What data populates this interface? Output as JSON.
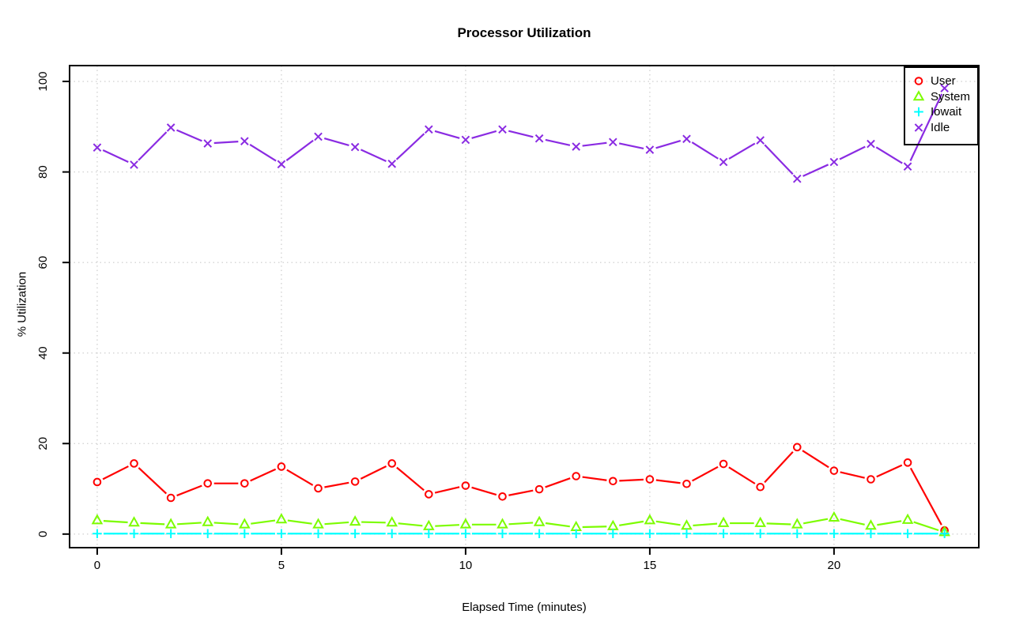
{
  "chart_data": {
    "type": "line",
    "title": "Processor Utilization",
    "xlabel": "Elapsed Time (minutes)",
    "ylabel": "% Utilization",
    "x": [
      0,
      1,
      2,
      3,
      4,
      5,
      6,
      7,
      8,
      9,
      10,
      11,
      12,
      13,
      14,
      15,
      16,
      17,
      18,
      19,
      20,
      21,
      22,
      23
    ],
    "xticks": [
      0,
      5,
      10,
      15,
      20
    ],
    "yticks": [
      0,
      20,
      40,
      60,
      80,
      100
    ],
    "xlim": [
      -0.75,
      23.93
    ],
    "ylim": [
      -3,
      103.5
    ],
    "grid": "dotted",
    "grid_color": "#d3d3d3",
    "axis_color": "#000000",
    "legend_position": "top-right",
    "marker_style": "open markers with gapped connecting lines (R type='b')",
    "series": [
      {
        "name": "User",
        "marker": "circle",
        "color": "#ff0000",
        "values": [
          11.5,
          15.6,
          8.0,
          11.2,
          11.2,
          14.9,
          10.1,
          11.6,
          15.6,
          8.8,
          10.7,
          8.3,
          9.9,
          12.8,
          11.7,
          12.1,
          11.1,
          15.5,
          10.4,
          19.2,
          14.0,
          12.1,
          15.8,
          0.8
        ]
      },
      {
        "name": "System",
        "marker": "triangle",
        "color": "#7cfc00",
        "values": [
          3.0,
          2.5,
          2.1,
          2.6,
          2.1,
          3.2,
          2.1,
          2.7,
          2.5,
          1.7,
          2.1,
          2.1,
          2.6,
          1.5,
          1.7,
          3.0,
          1.8,
          2.4,
          2.4,
          2.1,
          3.6,
          1.8,
          3.1,
          0.4
        ]
      },
      {
        "name": "Iowait",
        "marker": "plus",
        "color": "#00ffff",
        "values": [
          0.1,
          0.1,
          0.1,
          0.1,
          0.1,
          0.1,
          0.1,
          0.1,
          0.1,
          0.1,
          0.1,
          0.1,
          0.1,
          0.1,
          0.1,
          0.1,
          0.1,
          0.1,
          0.1,
          0.1,
          0.1,
          0.1,
          0.1,
          0.1
        ]
      },
      {
        "name": "Idle",
        "marker": "x",
        "color": "#8a2be2",
        "values": [
          85.4,
          81.6,
          89.8,
          86.3,
          86.8,
          81.7,
          87.8,
          85.5,
          81.8,
          89.4,
          87.1,
          89.4,
          87.4,
          85.6,
          86.6,
          84.9,
          87.3,
          82.2,
          87.0,
          78.5,
          82.2,
          86.2,
          81.2,
          98.5
        ]
      }
    ]
  }
}
